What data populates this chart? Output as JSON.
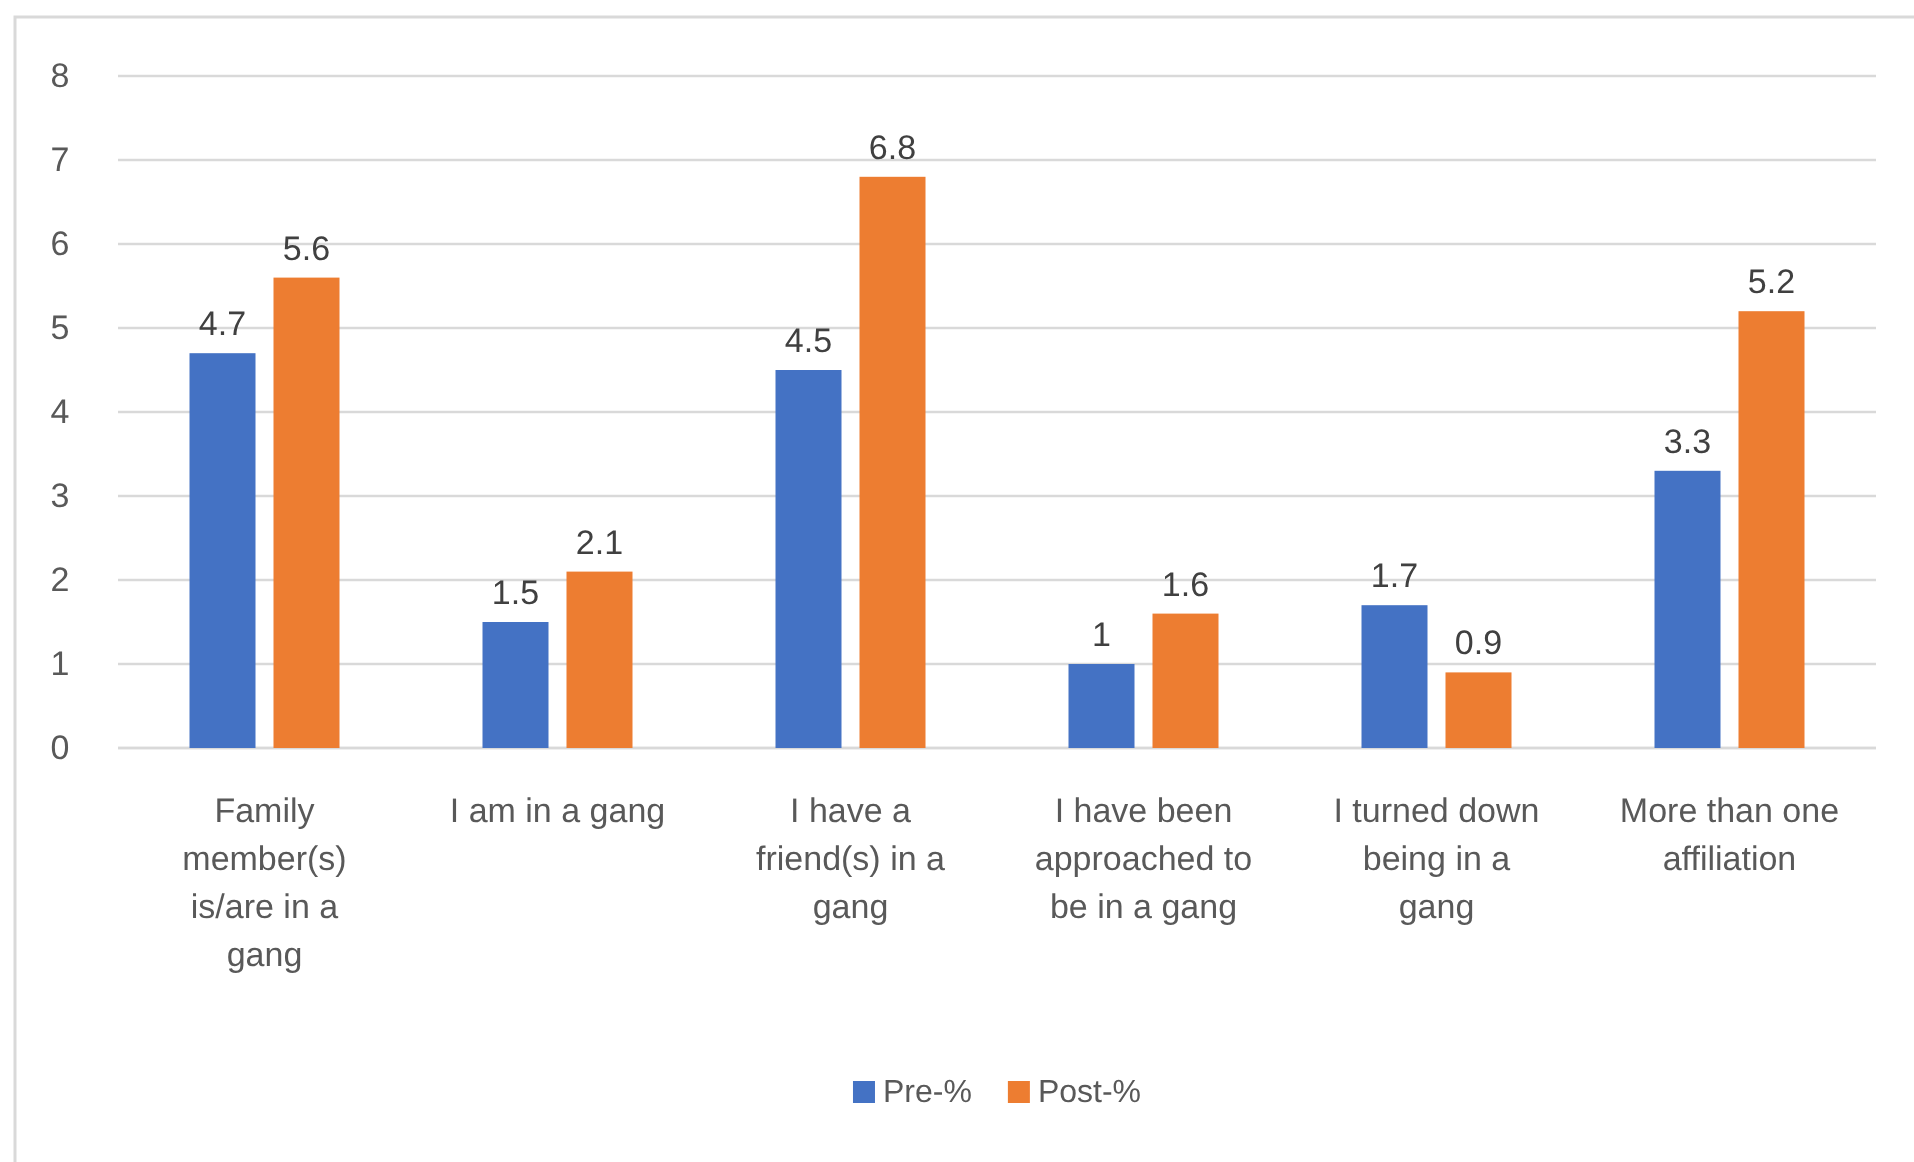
{
  "chart_data": {
    "type": "bar",
    "categories": [
      "Family member(s) is/are in a gang",
      "I am in a gang",
      "I have a friend(s) in a gang",
      "I have been approached to be in a gang",
      "I turned down being in a gang",
      "More than one affiliation"
    ],
    "series": [
      {
        "name": "Pre-%",
        "color": "#4472c4",
        "values": [
          4.7,
          1.5,
          4.5,
          1,
          1.7,
          3.3
        ]
      },
      {
        "name": "Post-%",
        "color": "#ed7d31",
        "values": [
          5.6,
          2.1,
          6.8,
          1.6,
          0.9,
          5.2
        ]
      }
    ],
    "ylim": [
      0,
      8
    ],
    "yticks": [
      0,
      1,
      2,
      3,
      4,
      5,
      6,
      7,
      8
    ],
    "grid": "y",
    "legend": "bottom",
    "data_labels": true
  }
}
